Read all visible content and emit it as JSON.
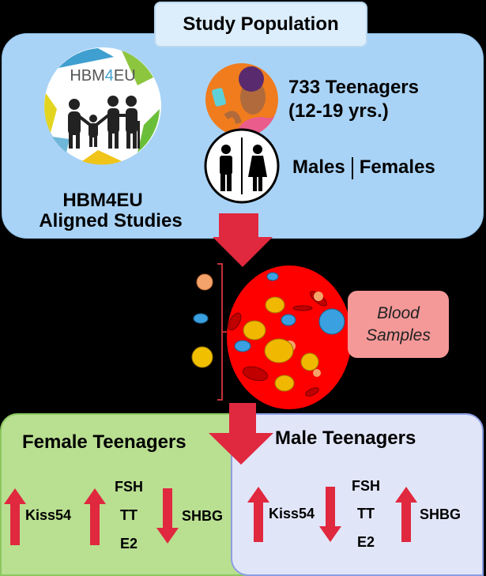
{
  "study_population": {
    "title": "Study Population",
    "logo_text": "HBM4EU",
    "logo_caption_line1": "HBM4EU",
    "logo_caption_line2": "Aligned Studies",
    "teen_count_line1": "733 Teenagers",
    "teen_count_line2": "(12-19 yrs.)",
    "sex_male": "Males",
    "sex_female": "Females"
  },
  "blood": {
    "label_line1": "Blood",
    "label_line2": "Samples"
  },
  "female": {
    "title": "Female Teenagers",
    "items": [
      {
        "label": "Kiss54",
        "direction": "up"
      },
      {
        "labels": [
          "FSH",
          "TT",
          "E2"
        ],
        "direction": "up"
      },
      {
        "label": "SHBG",
        "direction": "down"
      }
    ]
  },
  "male": {
    "title": "Male Teenagers",
    "items": [
      {
        "label": "Kiss54",
        "direction": "up"
      },
      {
        "labels": [
          "FSH",
          "TT",
          "E2"
        ],
        "direction": "down"
      },
      {
        "label": "SHBG",
        "direction": "up"
      }
    ]
  },
  "colors": {
    "arrow": "#e0283f",
    "population_box": "#a9d3f6",
    "female_box": "#b9df91",
    "male_box": "#e1e5f8",
    "blood": "#ff0000"
  }
}
